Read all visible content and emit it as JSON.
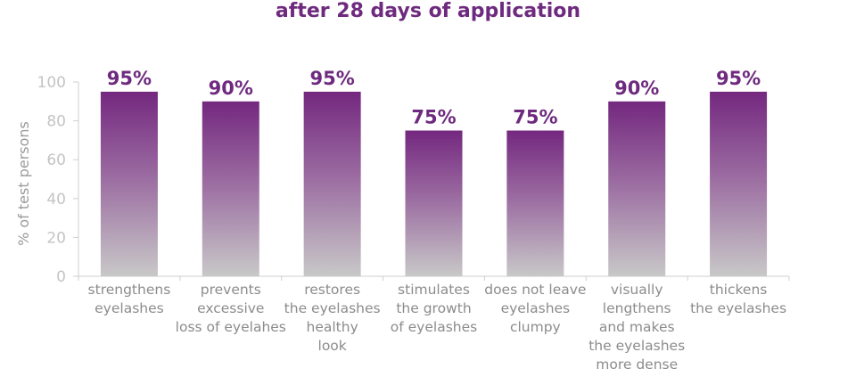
{
  "chart_data": {
    "type": "bar",
    "title": "after 28 days of application",
    "ylabel": "% of test persons",
    "xlabel": "",
    "ylim": [
      0,
      100
    ],
    "yticks": [
      0,
      20,
      40,
      60,
      80,
      100
    ],
    "grid": false,
    "categories": [
      [
        "strengthens",
        "eyelashes"
      ],
      [
        "prevents",
        "excessive",
        "loss of eyelahes"
      ],
      [
        "restores",
        "the eyelashes",
        "healthy",
        "look"
      ],
      [
        "stimulates",
        "the growth",
        "of eyelashes"
      ],
      [
        "does not leave",
        "eyelashes",
        "clumpy"
      ],
      [
        "visually",
        "lengthens",
        "and makes",
        "the eyelashes",
        "more dense"
      ],
      [
        "thickens",
        "the eyelashes"
      ]
    ],
    "values": [
      95,
      90,
      95,
      75,
      75,
      90,
      95
    ],
    "data_labels": [
      "95%",
      "90%",
      "95%",
      "75%",
      "75%",
      "90%",
      "95%"
    ],
    "colors": {
      "bar_top": "#74287f",
      "bar_bottom": "#c8c8c8",
      "label": "#6e2a7e",
      "axis": "#cfcfcf"
    }
  }
}
